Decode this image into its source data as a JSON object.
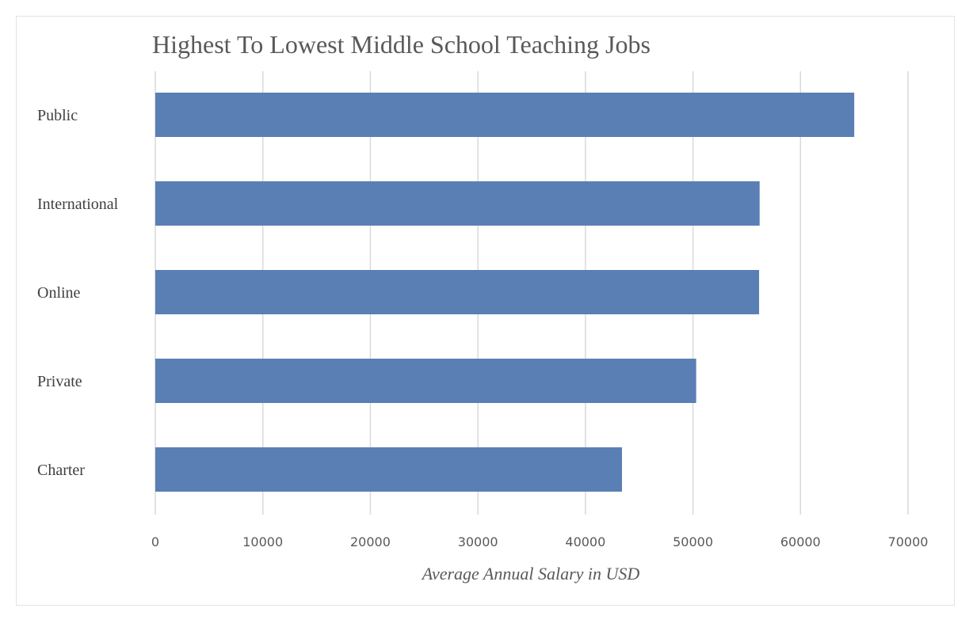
{
  "chart_data": {
    "type": "bar",
    "orientation": "horizontal",
    "title": "Highest To Lowest Middle School Teaching Jobs",
    "xlabel": "Average Annual Salary in USD",
    "ylabel": "",
    "categories": [
      "Public",
      "International",
      "Online",
      "Private",
      "Charter"
    ],
    "values": [
      65000,
      56200,
      56150,
      50300,
      43400
    ],
    "xlim": [
      0,
      70000
    ],
    "xticks": [
      "0",
      "10000",
      "20000",
      "30000",
      "40000",
      "50000",
      "60000",
      "70000"
    ],
    "grid": "vertical",
    "bar_color": "#5a7fb5",
    "legend": "none"
  }
}
